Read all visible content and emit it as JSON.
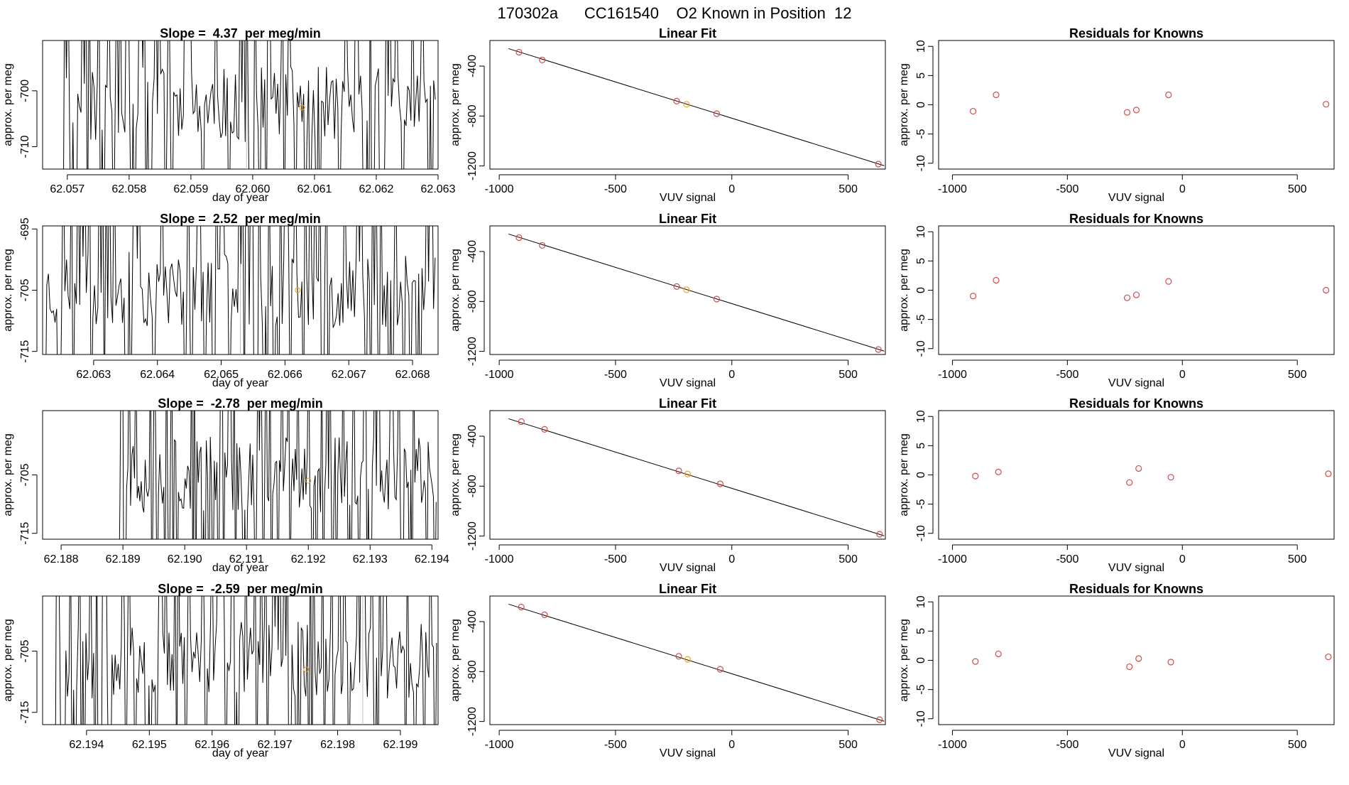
{
  "page_title": "170302a      CC161540    O2 Known in Position  12",
  "colors": {
    "line": "#000000",
    "point": "#d24a4a",
    "sample": "#f0a020",
    "marker": "#bdbdbd"
  },
  "chart_data": [
    {
      "type": "line",
      "title": "Slope =  4.37  per meg/min",
      "xlabel": "day of year",
      "ylabel": "approx. per meg",
      "xlim": [
        62.0566,
        62.063
      ],
      "ylim": [
        -714,
        -691
      ],
      "xticks": [
        "62.057",
        "62.058",
        "62.059",
        "62.060",
        "62.061",
        "62.062",
        "62.063"
      ],
      "yticks": [
        "-700",
        "-710"
      ],
      "x_start": 62.05688,
      "x_step": 2.63e-05,
      "seed": 11,
      "sample_marker_x": 62.0599,
      "sample_point": {
        "x": 62.0608,
        "y": -703
      }
    },
    {
      "type": "line",
      "title": "Slope =  2.52  per meg/min",
      "xlabel": "day of year",
      "ylabel": "approx. per meg",
      "xlim": [
        62.0622,
        62.0684
      ],
      "ylim": [
        -715.5,
        -694.5
      ],
      "xticks": [
        "62.063",
        "62.064",
        "62.065",
        "62.066",
        "62.067",
        "62.068"
      ],
      "yticks": [
        "-695",
        "-705",
        "-715"
      ],
      "x_start": 62.06224,
      "x_step": 2.58e-05,
      "seed": 23,
      "sample_marker_x": 62.0653,
      "sample_point": {
        "x": 62.0662,
        "y": -705
      }
    },
    {
      "type": "line",
      "title": "Slope =  -2.78  per meg/min",
      "xlabel": "day of year",
      "ylabel": "approx. per meg",
      "xlim": [
        62.1877,
        62.1941
      ],
      "ylim": [
        -716,
        -694
      ],
      "xticks": [
        "62.188",
        "62.189",
        "62.190",
        "62.191",
        "62.192",
        "62.193",
        "62.194"
      ],
      "yticks": [
        "-705",
        "-715"
      ],
      "x_start": 62.18893,
      "x_step": 2.15e-05,
      "seed": 37,
      "sample_marker_x": null,
      "sample_point": {
        "x": 62.192,
        "y": -706
      }
    },
    {
      "type": "line",
      "title": "Slope =  -2.59  per meg/min",
      "xlabel": "day of year",
      "ylabel": "approx. per meg",
      "xlim": [
        62.1933,
        62.1996
      ],
      "ylim": [
        -717,
        -696
      ],
      "xticks": [
        "62.194",
        "62.195",
        "62.196",
        "62.197",
        "62.198",
        "62.199"
      ],
      "yticks": [
        "-705",
        "-715"
      ],
      "x_start": 62.1935,
      "x_step": 2.45e-05,
      "seed": 53,
      "sample_marker_x": 62.1984,
      "sample_point": {
        "x": 62.1975,
        "y": -708
      }
    },
    {
      "type": "scatter",
      "title": "Linear Fit",
      "xlabel": "VUV signal",
      "ylabel": "approx. per meg",
      "xlim": [
        -1040,
        660
      ],
      "ylim": [
        -1225,
        -195
      ],
      "xticks": [
        "-1000",
        "-500",
        "0",
        "500"
      ],
      "yticks": [
        "-400",
        "-800",
        "-1200"
      ],
      "fit": [
        [
          -960,
          -260
        ],
        [
          655,
          -1198
        ]
      ],
      "points": [
        {
          "x": -915,
          "y": -289,
          "kind": "known"
        },
        {
          "x": -815,
          "y": -351,
          "kind": "known"
        },
        {
          "x": -237,
          "y": -681,
          "kind": "known"
        },
        {
          "x": -195,
          "y": -706,
          "kind": "sample"
        },
        {
          "x": -65,
          "y": -781,
          "kind": "known"
        },
        {
          "x": 630,
          "y": -1185,
          "kind": "known"
        }
      ]
    },
    {
      "type": "scatter",
      "title": "Linear Fit",
      "xlabel": "VUV signal",
      "ylabel": "approx. per meg",
      "xlim": [
        -1040,
        660
      ],
      "ylim": [
        -1225,
        -195
      ],
      "xticks": [
        "-1000",
        "-500",
        "0",
        "500"
      ],
      "yticks": [
        "-400",
        "-800",
        "-1200"
      ],
      "fit": [
        [
          -960,
          -260
        ],
        [
          655,
          -1198
        ]
      ],
      "points": [
        {
          "x": -915,
          "y": -289,
          "kind": "known"
        },
        {
          "x": -815,
          "y": -351,
          "kind": "known"
        },
        {
          "x": -237,
          "y": -681,
          "kind": "known"
        },
        {
          "x": -195,
          "y": -706,
          "kind": "sample"
        },
        {
          "x": -65,
          "y": -781,
          "kind": "known"
        },
        {
          "x": 630,
          "y": -1185,
          "kind": "known"
        }
      ]
    },
    {
      "type": "scatter",
      "title": "Linear Fit",
      "xlabel": "VUV signal",
      "ylabel": "approx. per meg",
      "xlim": [
        -1040,
        660
      ],
      "ylim": [
        -1225,
        -195
      ],
      "xticks": [
        "-1000",
        "-500",
        "0",
        "500"
      ],
      "yticks": [
        "-400",
        "-800",
        "-1200"
      ],
      "fit": [
        [
          -960,
          -260
        ],
        [
          655,
          -1198
        ]
      ],
      "points": [
        {
          "x": -905,
          "y": -283,
          "kind": "known"
        },
        {
          "x": -805,
          "y": -345,
          "kind": "known"
        },
        {
          "x": -228,
          "y": -678,
          "kind": "known"
        },
        {
          "x": -190,
          "y": -703,
          "kind": "sample"
        },
        {
          "x": -50,
          "y": -782,
          "kind": "known"
        },
        {
          "x": 635,
          "y": -1185,
          "kind": "known"
        }
      ]
    },
    {
      "type": "scatter",
      "title": "Linear Fit",
      "xlabel": "VUV signal",
      "ylabel": "approx. per meg",
      "xlim": [
        -1040,
        660
      ],
      "ylim": [
        -1225,
        -195
      ],
      "xticks": [
        "-1000",
        "-500",
        "0",
        "500"
      ],
      "yticks": [
        "-400",
        "-800",
        "-1200"
      ],
      "fit": [
        [
          -960,
          -260
        ],
        [
          655,
          -1198
        ]
      ],
      "points": [
        {
          "x": -905,
          "y": -283,
          "kind": "known"
        },
        {
          "x": -805,
          "y": -345,
          "kind": "known"
        },
        {
          "x": -228,
          "y": -678,
          "kind": "known"
        },
        {
          "x": -190,
          "y": -703,
          "kind": "sample"
        },
        {
          "x": -50,
          "y": -782,
          "kind": "known"
        },
        {
          "x": 635,
          "y": -1185,
          "kind": "known"
        }
      ]
    },
    {
      "type": "scatter",
      "title": "Residuals for Knowns",
      "xlabel": "VUV signal",
      "ylabel": "approx. per meg",
      "xlim": [
        -1060,
        660
      ],
      "ylim": [
        -11,
        11
      ],
      "xticks": [
        "-1000",
        "-500",
        "0",
        "500"
      ],
      "yticks": [
        "10",
        "5",
        "0",
        "-5",
        "-10"
      ],
      "points": [
        {
          "x": -910,
          "y": -1.1
        },
        {
          "x": -810,
          "y": 1.7
        },
        {
          "x": -240,
          "y": -1.3
        },
        {
          "x": -200,
          "y": -0.9
        },
        {
          "x": -60,
          "y": 1.7
        },
        {
          "x": 625,
          "y": 0.1
        }
      ]
    },
    {
      "type": "scatter",
      "title": "Residuals for Knowns",
      "xlabel": "VUV signal",
      "ylabel": "approx. per meg",
      "xlim": [
        -1060,
        660
      ],
      "ylim": [
        -11,
        11
      ],
      "xticks": [
        "-1000",
        "-500",
        "0",
        "500"
      ],
      "yticks": [
        "10",
        "5",
        "0",
        "-5",
        "-10"
      ],
      "points": [
        {
          "x": -910,
          "y": -1.0
        },
        {
          "x": -810,
          "y": 1.7
        },
        {
          "x": -240,
          "y": -1.3
        },
        {
          "x": -200,
          "y": -0.8
        },
        {
          "x": -60,
          "y": 1.5
        },
        {
          "x": 625,
          "y": 0.0
        }
      ]
    },
    {
      "type": "scatter",
      "title": "Residuals for Knowns",
      "xlabel": "VUV signal",
      "ylabel": "approx. per meg",
      "xlim": [
        -1060,
        660
      ],
      "ylim": [
        -11,
        11
      ],
      "xticks": [
        "-1000",
        "-500",
        "0",
        "500"
      ],
      "yticks": [
        "10",
        "5",
        "0",
        "-5",
        "-10"
      ],
      "points": [
        {
          "x": -900,
          "y": -0.2
        },
        {
          "x": -800,
          "y": 0.5
        },
        {
          "x": -230,
          "y": -1.3
        },
        {
          "x": -190,
          "y": 1.1
        },
        {
          "x": -50,
          "y": -0.4
        },
        {
          "x": 635,
          "y": 0.2
        }
      ]
    },
    {
      "type": "scatter",
      "title": "Residuals for Knowns",
      "xlabel": "VUV signal",
      "ylabel": "approx. per meg",
      "xlim": [
        -1060,
        660
      ],
      "ylim": [
        -11,
        11
      ],
      "xticks": [
        "-1000",
        "-500",
        "0",
        "500"
      ],
      "yticks": [
        "10",
        "5",
        "0",
        "-5",
        "-10"
      ],
      "points": [
        {
          "x": -900,
          "y": -0.2
        },
        {
          "x": -800,
          "y": 1.1
        },
        {
          "x": -230,
          "y": -1.1
        },
        {
          "x": -190,
          "y": 0.3
        },
        {
          "x": -50,
          "y": -0.3
        },
        {
          "x": 635,
          "y": 0.6
        }
      ]
    }
  ]
}
